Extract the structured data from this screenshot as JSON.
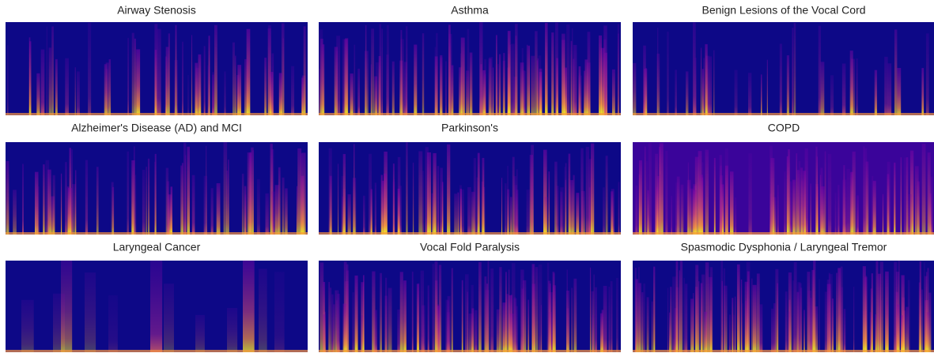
{
  "panels": [
    {
      "title": "Airway Stenosis"
    },
    {
      "title": "Asthma"
    },
    {
      "title": "Benign Lesions of the Vocal Cord"
    },
    {
      "title": "Alzheimer's Disease (AD) and MCI"
    },
    {
      "title": "Parkinson's"
    },
    {
      "title": "COPD"
    },
    {
      "title": "Laryngeal Cancer"
    },
    {
      "title": "Vocal Fold Paralysis"
    },
    {
      "title": "Spasmodic Dysphonia / Laryngeal Tremor"
    }
  ]
}
